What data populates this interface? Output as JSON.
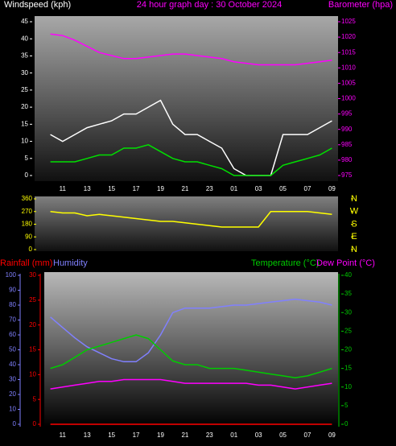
{
  "chart_data": [
    {
      "type": "line",
      "title": "24 hour graph day : 30 October 2024",
      "ylabel": "Windspeed (kph)",
      "y2label": "Barometer (hpa)",
      "categories": [
        null,
        "11",
        null,
        "13",
        null,
        "15",
        null,
        "17",
        null,
        "19",
        null,
        "21",
        null,
        "23",
        null,
        "01",
        null,
        "03",
        null,
        "05",
        null,
        "07",
        null,
        "09"
      ],
      "ylim": [
        0,
        45
      ],
      "yticks": [
        0,
        5,
        10,
        15,
        20,
        25,
        30,
        35,
        40,
        45
      ],
      "y2lim": [
        975,
        1025
      ],
      "y2ticks": [
        975,
        980,
        985,
        990,
        995,
        1000,
        1005,
        1010,
        1015,
        1020,
        1025
      ],
      "series": [
        {
          "color": "#ffffff",
          "values": [
            12,
            10,
            12,
            14,
            15,
            16,
            18,
            18,
            20,
            22,
            15,
            12,
            12,
            10,
            8,
            2,
            0,
            0,
            0,
            12,
            12,
            12,
            14,
            16
          ]
        },
        {
          "color": "#00e000",
          "values": [
            4,
            4,
            4,
            5,
            6,
            6,
            8,
            8,
            9,
            7,
            5,
            4,
            4,
            3,
            2,
            0,
            0,
            0,
            0,
            3,
            4,
            5,
            6,
            8
          ]
        },
        {
          "color": "#ff00ff",
          "axis": "y2",
          "values": [
            1021,
            1020.5,
            1019,
            1017,
            1015,
            1014,
            1013,
            1013,
            1013.5,
            1014,
            1014.5,
            1014.5,
            1014,
            1013.5,
            1013,
            1012,
            1011.5,
            1011,
            1011,
            1011,
            1011,
            1011.5,
            1012,
            1012.5
          ]
        }
      ]
    },
    {
      "type": "line",
      "categories": [
        null,
        "11",
        null,
        "13",
        null,
        "15",
        null,
        "17",
        null,
        "19",
        null,
        "21",
        null,
        "23",
        null,
        "01",
        null,
        "03",
        null,
        "05",
        null,
        "07",
        null,
        "09"
      ],
      "ylim": [
        0,
        360
      ],
      "yticks": [
        0,
        90,
        180,
        270,
        360
      ],
      "y2lim": [
        0,
        360
      ],
      "y2ticks": [
        {
          "value": 360,
          "label": "N"
        },
        {
          "value": 270,
          "label": "W"
        },
        {
          "value": 180,
          "label": "S"
        },
        {
          "value": 90,
          "label": "E"
        },
        {
          "value": 0,
          "label": "N"
        }
      ],
      "series": [
        {
          "color": "#ffff00",
          "values": [
            270,
            260,
            260,
            240,
            250,
            240,
            230,
            220,
            210,
            200,
            200,
            190,
            180,
            170,
            160,
            160,
            160,
            160,
            270,
            270,
            270,
            270,
            260,
            250
          ]
        }
      ]
    },
    {
      "type": "line",
      "categories": [
        null,
        "11",
        null,
        "13",
        null,
        "15",
        null,
        "17",
        null,
        "19",
        null,
        "21",
        null,
        "23",
        null,
        "01",
        null,
        "03",
        null,
        "05",
        null,
        "07",
        null,
        "09"
      ],
      "ylim": [
        0,
        30
      ],
      "yticks": [
        0,
        5,
        10,
        15,
        20,
        25,
        30
      ],
      "y2lim": [
        0,
        40
      ],
      "y2ticks": [
        0,
        5,
        10,
        15,
        20,
        25,
        30,
        35,
        40
      ],
      "y3lim": [
        0,
        100
      ],
      "y3ticks": [
        0,
        10,
        20,
        30,
        40,
        50,
        60,
        70,
        80,
        90,
        100
      ],
      "series": [
        {
          "name": "Rainfall (mm)",
          "color": "#ff0000",
          "values": [
            0,
            0,
            0,
            0,
            0,
            0,
            0,
            0,
            0,
            0,
            0,
            0,
            0,
            0,
            0,
            0,
            0,
            0,
            0,
            0,
            0,
            0,
            0,
            0
          ]
        },
        {
          "name": "Humidity",
          "color": "#8080ff",
          "axis": "y3",
          "values": [
            72,
            65,
            58,
            52,
            48,
            44,
            42,
            42,
            48,
            60,
            75,
            78,
            78,
            78,
            79,
            80,
            80,
            81,
            82,
            83,
            84,
            83,
            82,
            80
          ]
        },
        {
          "name": "Temperature (°C)",
          "color": "#00cc00",
          "axis": "y2",
          "values": [
            15,
            16,
            18,
            20,
            21,
            22,
            23,
            24,
            23,
            20,
            17,
            16,
            16,
            15,
            15,
            15,
            14.5,
            14,
            13.5,
            13,
            12.5,
            13,
            14,
            15
          ]
        },
        {
          "name": "Dew Point (°C)",
          "color": "#ff00ff",
          "axis": "y2",
          "values": [
            9.5,
            10,
            10.5,
            11,
            11.5,
            11.5,
            12,
            12,
            12,
            12,
            11.5,
            11,
            11,
            11,
            11,
            11,
            11,
            10.5,
            10.5,
            10,
            9.5,
            10,
            10.5,
            11
          ]
        }
      ]
    }
  ]
}
